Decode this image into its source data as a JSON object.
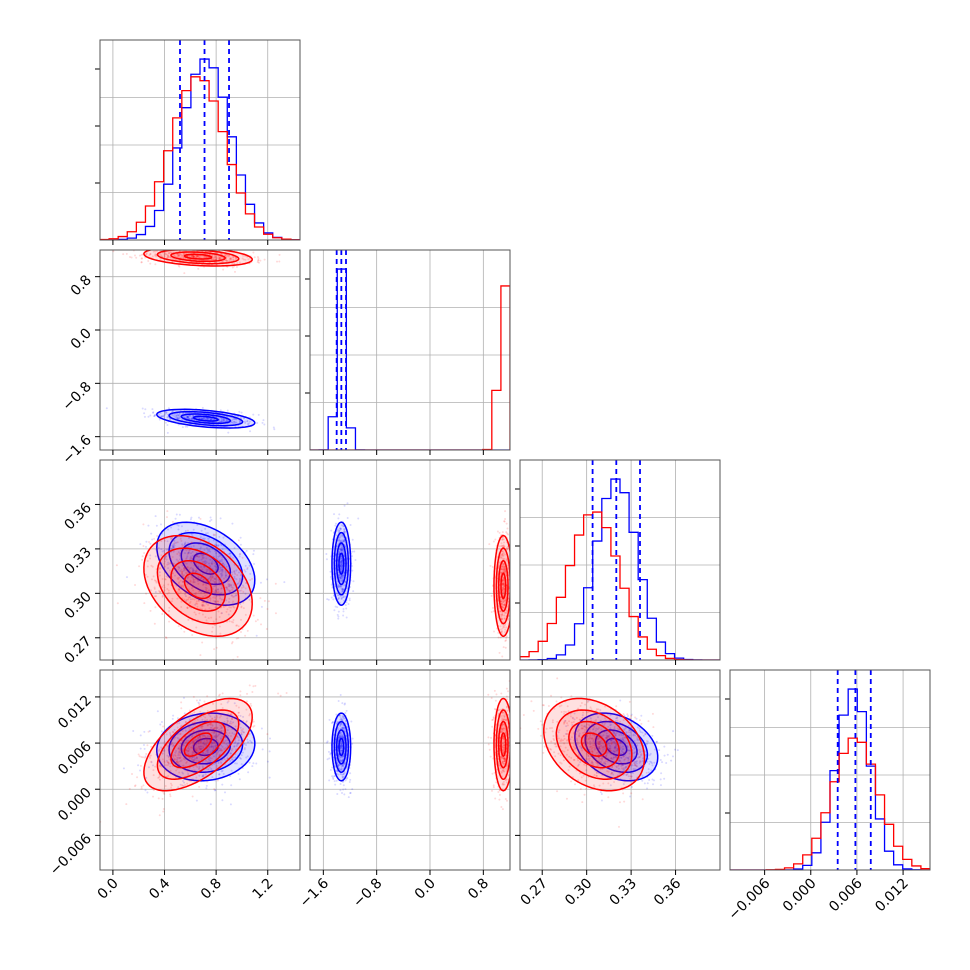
{
  "chart_data": {
    "type": "corner",
    "grid": true,
    "parameters": [
      {
        "range": [
          -0.1,
          1.45
        ],
        "ticks": [
          0.0,
          0.4,
          0.8,
          1.2
        ],
        "tick_labels": [
          "0.0",
          "0.4",
          "0.8",
          "1.2"
        ]
      },
      {
        "range": [
          -1.8,
          1.2
        ],
        "ticks": [
          -1.6,
          -0.8,
          0.0,
          0.8
        ],
        "tick_labels": [
          "−1.6",
          "−0.8",
          "0.0",
          "0.8"
        ]
      },
      {
        "range": [
          0.255,
          0.39
        ],
        "ticks": [
          0.27,
          0.3,
          0.33,
          0.36
        ],
        "tick_labels": [
          "0.27",
          "0.30",
          "0.33",
          "0.36"
        ]
      },
      {
        "range": [
          -0.0105,
          0.0155
        ],
        "ticks": [
          -0.006,
          0.0,
          0.006,
          0.012
        ],
        "tick_labels": [
          "−0.006",
          "0.000",
          "0.006",
          "0.012"
        ]
      }
    ],
    "series": [
      {
        "color": "#0000ff",
        "mean": [
          0.72,
          -1.33,
          0.32,
          0.0055
        ],
        "sd": [
          0.19,
          0.07,
          0.014,
          0.0022
        ],
        "corr": [
          [
            1,
            -0.45,
            -0.4,
            0.1
          ],
          [
            -0.45,
            1,
            0,
            0
          ],
          [
            -0.4,
            0,
            1,
            -0.3
          ],
          [
            0.1,
            0,
            -0.3,
            1
          ]
        ]
      },
      {
        "color": "#ff0000",
        "mean": [
          0.66,
          1.1,
          0.305,
          0.0058
        ],
        "sd": [
          0.21,
          0.07,
          0.017,
          0.003
        ],
        "corr": [
          [
            1,
            -0.3,
            -0.35,
            0.6
          ],
          [
            -0.3,
            1,
            0,
            0
          ],
          [
            -0.35,
            0,
            1,
            -0.3
          ],
          [
            0.6,
            0,
            -0.3,
            1
          ]
        ]
      }
    ],
    "quantile_lines": {
      "color": "#0000ff",
      "values": [
        [
          0.52,
          0.71,
          0.9
        ],
        [
          -1.4,
          -1.33,
          -1.26
        ],
        [
          0.304,
          0.32,
          0.336
        ],
        [
          0.0035,
          0.0058,
          0.0078
        ]
      ]
    }
  }
}
